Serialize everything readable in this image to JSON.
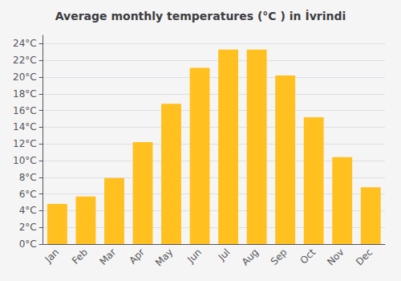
{
  "chart_data": {
    "type": "bar",
    "title": "Average monthly temperatures (°C ) in İvrindi",
    "categories": [
      "Jan",
      "Feb",
      "Mar",
      "Apr",
      "May",
      "Jun",
      "Jul",
      "Aug",
      "Sep",
      "Oct",
      "Nov",
      "Dec"
    ],
    "values": [
      4.8,
      5.7,
      7.9,
      12.2,
      16.8,
      21.1,
      23.3,
      23.3,
      20.2,
      15.2,
      10.4,
      6.8
    ],
    "color": "#FFC020",
    "ylim": [
      0,
      25
    ],
    "yticks": [
      {
        "value": 0,
        "label": "0°C"
      },
      {
        "value": 2,
        "label": "2°C"
      },
      {
        "value": 4,
        "label": "4°C"
      },
      {
        "value": 6,
        "label": "6°C"
      },
      {
        "value": 8,
        "label": "8°C"
      },
      {
        "value": 10,
        "label": "10°C"
      },
      {
        "value": 12,
        "label": "12°C"
      },
      {
        "value": 14,
        "label": "14°C"
      },
      {
        "value": 16,
        "label": "16°C"
      },
      {
        "value": 18,
        "label": "18°C"
      },
      {
        "value": 20,
        "label": "20°C"
      },
      {
        "value": 22,
        "label": "22°C"
      },
      {
        "value": 24,
        "label": "24°C"
      }
    ],
    "grid": true
  }
}
